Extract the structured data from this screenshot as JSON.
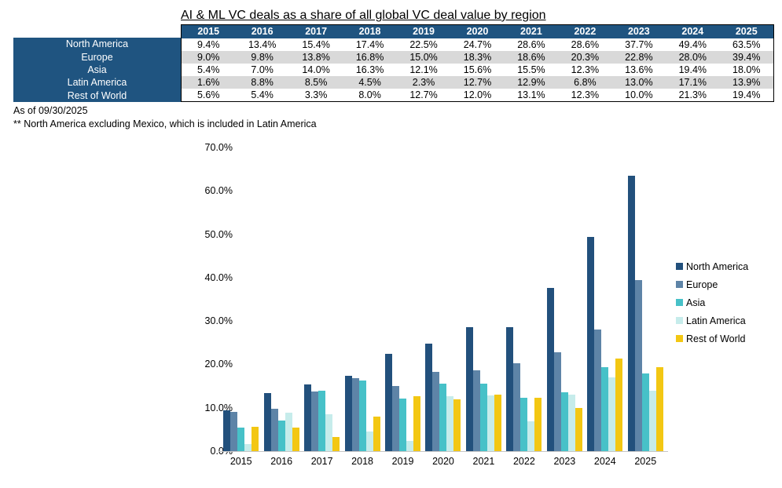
{
  "title": "AI & ML VC deals as a share of all global VC deal value by region",
  "table": {
    "years": [
      "2015",
      "2016",
      "2017",
      "2018",
      "2019",
      "2020",
      "2021",
      "2022",
      "2023",
      "2024",
      "2025"
    ],
    "rows": [
      {
        "region": "North America",
        "values": [
          "9.4%",
          "13.4%",
          "15.4%",
          "17.4%",
          "22.5%",
          "24.7%",
          "28.6%",
          "28.6%",
          "37.7%",
          "49.4%",
          "63.5%"
        ]
      },
      {
        "region": "Europe",
        "values": [
          "9.0%",
          "9.8%",
          "13.8%",
          "16.8%",
          "15.0%",
          "18.3%",
          "18.6%",
          "20.3%",
          "22.8%",
          "28.0%",
          "39.4%"
        ]
      },
      {
        "region": "Asia",
        "values": [
          "5.4%",
          "7.0%",
          "14.0%",
          "16.3%",
          "12.1%",
          "15.6%",
          "15.5%",
          "12.3%",
          "13.6%",
          "19.4%",
          "18.0%"
        ]
      },
      {
        "region": "Latin America",
        "values": [
          "1.6%",
          "8.8%",
          "8.5%",
          "4.5%",
          "2.3%",
          "12.7%",
          "12.9%",
          "6.8%",
          "13.0%",
          "17.1%",
          "13.9%"
        ]
      },
      {
        "region": "Rest of World",
        "values": [
          "5.6%",
          "5.4%",
          "3.3%",
          "8.0%",
          "12.7%",
          "12.0%",
          "13.1%",
          "12.3%",
          "10.0%",
          "21.3%",
          "19.4%"
        ]
      }
    ]
  },
  "footnotes": {
    "as_of": "As of 09/30/2025",
    "note": "** North America excluding Mexico, which is included in Latin America"
  },
  "chart_data": {
    "type": "bar",
    "title": "AI & ML VC deals as a share of all global VC deal value by region",
    "categories": [
      "2015",
      "2016",
      "2017",
      "2018",
      "2019",
      "2020",
      "2021",
      "2022",
      "2023",
      "2024",
      "2025"
    ],
    "series": [
      {
        "name": "North America",
        "color": "#22507C",
        "values": [
          9.4,
          13.4,
          15.4,
          17.4,
          22.5,
          24.7,
          28.6,
          28.6,
          37.7,
          49.4,
          63.5
        ]
      },
      {
        "name": "Europe",
        "color": "#5E84A7",
        "values": [
          9.0,
          9.8,
          13.8,
          16.8,
          15.0,
          18.3,
          18.6,
          20.3,
          22.8,
          28.0,
          39.4
        ]
      },
      {
        "name": "Asia",
        "color": "#47C1C8",
        "values": [
          5.4,
          7.0,
          14.0,
          16.3,
          12.1,
          15.6,
          15.5,
          12.3,
          13.6,
          19.4,
          18.0
        ]
      },
      {
        "name": "Latin America",
        "color": "#C6ECEB",
        "values": [
          1.6,
          8.8,
          8.5,
          4.5,
          2.3,
          12.7,
          12.9,
          6.8,
          13.0,
          17.1,
          13.9
        ]
      },
      {
        "name": "Rest of World",
        "color": "#F3C713",
        "values": [
          5.6,
          5.4,
          3.3,
          8.0,
          12.7,
          12.0,
          13.1,
          12.3,
          10.0,
          21.3,
          19.4
        ]
      }
    ],
    "ylim": [
      0,
      70
    ],
    "yticks": [
      0,
      10,
      20,
      30,
      40,
      50,
      60,
      70
    ],
    "ytick_labels": [
      "0.0%",
      "10.0%",
      "20.0%",
      "30.0%",
      "40.0%",
      "50.0%",
      "60.0%",
      "70.0%"
    ],
    "xlabel": "",
    "ylabel": "",
    "grid": false,
    "legend_position": "right"
  },
  "colors": {
    "table_navy": "#1F5480",
    "row_alt": "#D9D9D9",
    "axis_line": "#C6C6C6"
  }
}
